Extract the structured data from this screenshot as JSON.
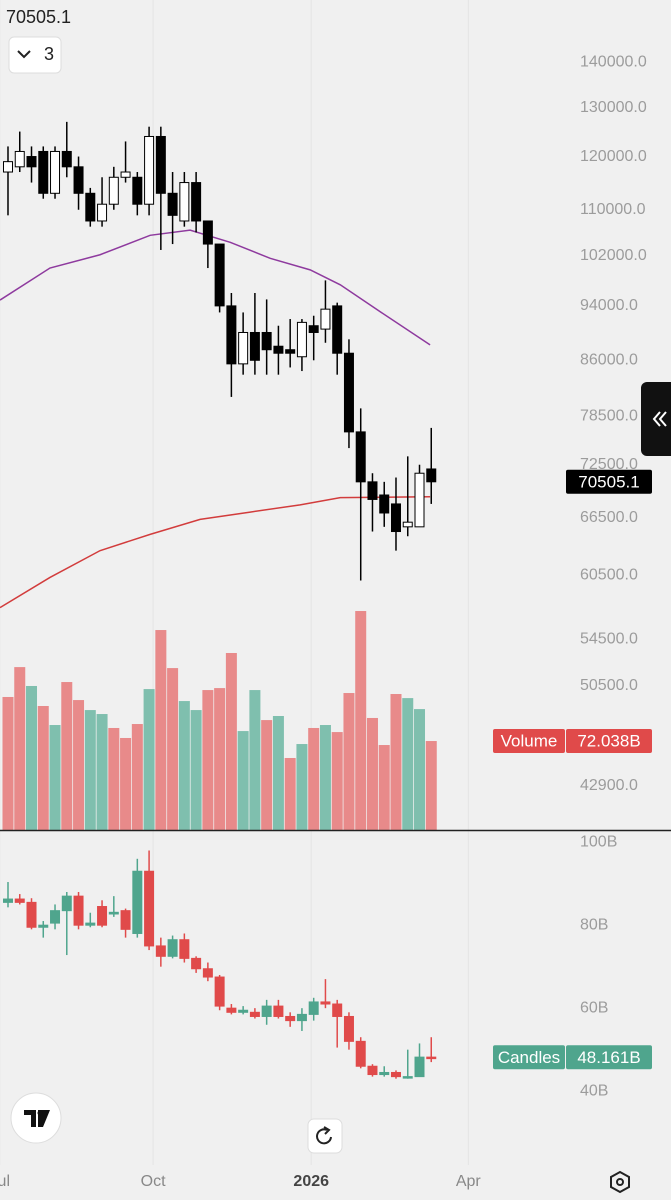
{
  "ui": {
    "last_price_header": "chart_data.0.close.36",
    "indicator_count": 3
  },
  "chart_data": [
    {
      "type": "candlestick",
      "log_scale": true,
      "xlim": [
        -0.68,
        47.8
      ],
      "ylim": [
        39900,
        155000
      ],
      "yticks": [
        {
          "value": 140000,
          "label": "140000.0"
        },
        {
          "value": 130000,
          "label": "130000.0"
        },
        {
          "value": 120000,
          "label": "120000.0"
        },
        {
          "value": 110000,
          "label": "110000.0"
        },
        {
          "value": 102000,
          "label": "102000.0"
        },
        {
          "value": 94000,
          "label": "94000.0"
        },
        {
          "value": 86000,
          "label": "86000.0"
        },
        {
          "value": 78500,
          "label": "78500.0"
        },
        {
          "value": 72500,
          "label": "72500.0"
        },
        {
          "value": 66500,
          "label": "66500.0"
        },
        {
          "value": 60500,
          "label": "60500.0"
        },
        {
          "value": 54500,
          "label": "54500.0"
        },
        {
          "value": 50500,
          "label": "50500.0"
        },
        {
          "value": 42900,
          "label": "42900.0"
        }
      ],
      "up_color": "#ffffff",
      "down_color": "#000000",
      "border_color": "#000000",
      "open": [
        117000,
        118000,
        120000,
        121000,
        113000,
        121000,
        118000,
        113000,
        108000,
        111000,
        116000,
        116000,
        111000,
        124000,
        113000,
        108000,
        115000,
        108000,
        104000,
        94000,
        85500,
        90000,
        90000,
        88000,
        87500,
        86500,
        91000,
        90500,
        94000,
        87000,
        76500,
        70500,
        69000,
        68000,
        65500,
        65500,
        72000
      ],
      "high": [
        122000,
        125000,
        122000,
        122000,
        122000,
        127000,
        120000,
        114000,
        116000,
        118000,
        123000,
        117000,
        126000,
        126000,
        117000,
        117000,
        117000,
        108000,
        104000,
        96000,
        93000,
        96000,
        95000,
        91000,
        92000,
        92000,
        92500,
        98000,
        94500,
        89000,
        79500,
        71500,
        70500,
        71000,
        73500,
        72500,
        77000
      ],
      "low": [
        109000,
        117000,
        115000,
        112000,
        112000,
        116000,
        110000,
        107000,
        107000,
        110000,
        115000,
        109000,
        109000,
        103000,
        104000,
        107000,
        106000,
        100000,
        93000,
        81000,
        84000,
        84000,
        84000,
        84000,
        85000,
        84500,
        86000,
        88500,
        84000,
        74500,
        60000,
        65000,
        65500,
        63000,
        64500,
        65500,
        68000
      ],
      "close": [
        119000,
        121000,
        118000,
        113000,
        121000,
        118000,
        113000,
        108000,
        111000,
        116000,
        117000,
        111000,
        124000,
        113000,
        109000,
        115000,
        108000,
        104000,
        94000,
        85500,
        90000,
        86000,
        87500,
        87000,
        87000,
        91500,
        90000,
        93500,
        87000,
        76500,
        70500,
        68500,
        67000,
        65000,
        66000,
        71500,
        70505.1
      ],
      "series": [
        {
          "color": "#8e3a9e",
          "x": [
            -0.68,
            3.57,
            7.83,
            12.09,
            15.49,
            18.9,
            22.3,
            25.7,
            28.26,
            31.66,
            35.9
          ],
          "values": [
            94900,
            100000,
            102200,
            105500,
            106400,
            104300,
            101600,
            99700,
            97300,
            93100,
            88200
          ]
        },
        {
          "color": "#d23c3c",
          "x": [
            -0.68,
            3.57,
            7.83,
            12.09,
            16.34,
            20.6,
            24.85,
            28.26,
            35.9
          ],
          "values": [
            57400,
            60300,
            63000,
            64700,
            66300,
            67100,
            67900,
            68700,
            68800
          ]
        }
      ],
      "volume": {
        "name": "Volume",
        "ylim": [
          0,
          672
        ],
        "badge_color": "#e04a4a",
        "last_value_label": "72.038B",
        "values": [
          107.7,
          131.9,
          116.6,
          100.4,
          85.0,
          119.8,
          105.2,
          97.1,
          93.9,
          82.6,
          74.5,
          85.8,
          114.1,
          161.9,
          131.1,
          104.4,
          97.1,
          113.3,
          114.9,
          143.3,
          80.1,
          113.3,
          89.0,
          92.3,
          58.3,
          69.6,
          82.6,
          85.0,
          79.3,
          110.9,
          177.3,
          90.7,
          68.8,
          110.1,
          106.8,
          97.9,
          72.038
        ],
        "colors": [
          "#e88a8a",
          "#e88a8a",
          "#7fbfae",
          "#e88a8a",
          "#7fbfae",
          "#e88a8a",
          "#e88a8a",
          "#7fbfae",
          "#7fbfae",
          "#e88a8a",
          "#e88a8a",
          "#e88a8a",
          "#7fbfae",
          "#e88a8a",
          "#e88a8a",
          "#7fbfae",
          "#7fbfae",
          "#e88a8a",
          "#e88a8a",
          "#e88a8a",
          "#7fbfae",
          "#7fbfae",
          "#e88a8a",
          "#7fbfae",
          "#e88a8a",
          "#7fbfae",
          "#e88a8a",
          "#7fbfae",
          "#e88a8a",
          "#e88a8a",
          "#e88a8a",
          "#e88a8a",
          "#e88a8a",
          "#e88a8a",
          "#7fbfae",
          "#7fbfae",
          "#e88a8a"
        ]
      }
    },
    {
      "type": "candlestick",
      "name": "Candles",
      "badge_color": "#4fa58d",
      "last_value_label": "48.161B",
      "xlim": [
        -0.68,
        47.8
      ],
      "ylim": [
        22.2,
        102.7
      ],
      "yticks": [
        {
          "value": 100,
          "label": "100B"
        },
        {
          "value": 80,
          "label": "80B"
        },
        {
          "value": 60,
          "label": "60B"
        },
        {
          "value": 40,
          "label": "40B"
        }
      ],
      "xticks": [
        {
          "value": -0.7,
          "label": "Jul"
        },
        {
          "value": 12.34,
          "label": "Oct"
        },
        {
          "value": 25.79,
          "label": "2026"
        },
        {
          "value": 39.15,
          "label": "Apr"
        }
      ],
      "up_color": "#4fa58d",
      "down_color": "#e04a4a",
      "open": [
        85.5,
        86.3,
        85.5,
        79.5,
        80.5,
        83.5,
        87,
        80,
        84.5,
        82.7,
        83.5,
        78,
        93,
        75,
        72.5,
        76.5,
        72,
        69.5,
        67.5,
        60,
        59,
        59,
        58,
        60.5,
        58,
        57,
        58.5,
        61.5,
        61,
        58,
        52,
        46,
        44,
        44.5,
        43.5,
        43.5,
        48.2
      ],
      "high": [
        90.4,
        87.5,
        86.5,
        81,
        85,
        88,
        88,
        83,
        86,
        87,
        84,
        96,
        98,
        77,
        77.5,
        78,
        72.5,
        71,
        68,
        61,
        60.5,
        60,
        62,
        62,
        59,
        60,
        62.5,
        67,
        62,
        59,
        53,
        46.5,
        46,
        45,
        50,
        51.5,
        53
      ],
      "low": [
        84.3,
        85,
        79,
        77,
        79,
        72.8,
        79,
        79.5,
        79.5,
        82,
        77,
        77,
        74,
        70,
        72,
        71,
        68.5,
        66.5,
        59.5,
        58.5,
        58.5,
        57.5,
        56,
        57.5,
        55.5,
        54.5,
        57,
        60,
        50.5,
        50,
        45.5,
        43.5,
        43.5,
        43,
        43,
        43.5,
        47
      ],
      "close": [
        86.3,
        85.5,
        79.5,
        80,
        83.5,
        87,
        80,
        80.5,
        80,
        83.1,
        79,
        93,
        75,
        72.5,
        76.5,
        72,
        69.5,
        67.5,
        60.5,
        59,
        59.5,
        58,
        60.5,
        58,
        57,
        58.5,
        61.5,
        61,
        58,
        52,
        46,
        44,
        44.5,
        43.5,
        43.5,
        48.2,
        48.161
      ]
    }
  ]
}
